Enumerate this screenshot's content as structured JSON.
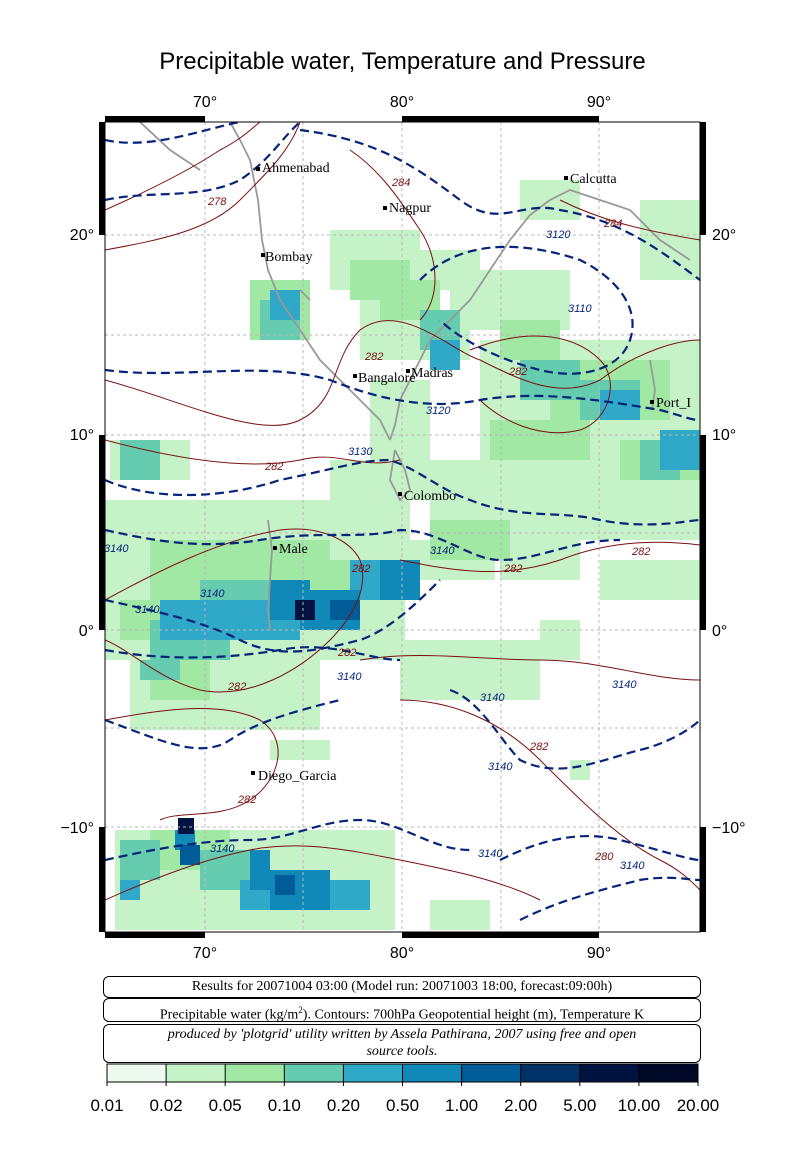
{
  "title": "Precipitable water, Temperature and Pressure",
  "axes": {
    "top_lon_labels": [
      "70°",
      "80°",
      "90°"
    ],
    "bottom_lon_labels": [
      "70°",
      "80°",
      "90°"
    ],
    "left_lat_labels": [
      "20°",
      "10°",
      "0°",
      "−10°"
    ],
    "right_lat_labels": [
      "20°",
      "10°",
      "0°",
      "−10°"
    ]
  },
  "cities": [
    {
      "name": "Ahmenabad"
    },
    {
      "name": "Nagpur"
    },
    {
      "name": "Calcutta"
    },
    {
      "name": "Bombay"
    },
    {
      "name": "Bangalore"
    },
    {
      "name": "Madras"
    },
    {
      "name": "Port_I"
    },
    {
      "name": "Colombo"
    },
    {
      "name": "Male"
    },
    {
      "name": "Diego_Garcia"
    }
  ],
  "contour_labels": {
    "geopotential": [
      "3120",
      "3110",
      "3120",
      "3130",
      "3140",
      "3140",
      "3140",
      "3140",
      "3140",
      "3140",
      "3140",
      "3140",
      "3140",
      "3140",
      "3140"
    ],
    "temperature": [
      "278",
      "284",
      "284",
      "282",
      "282",
      "282",
      "282",
      "282",
      "282",
      "282",
      "282",
      "282",
      "282",
      "280"
    ]
  },
  "info": {
    "results_line": "Results for 20071004 03:00 (Model run: 20071003 18:00, forecast:09:00h)",
    "legend_line_a": "Precipitable water (kg/m",
    "legend_sup": "2",
    "legend_line_b": ").  Contours: 700hPa Geopotential height (m), Temperature K",
    "credit_line1": "produced by 'plotgrid' utility written by Assela Pathirana, 2007 using free and open",
    "credit_line2": "source tools."
  },
  "colorbar": {
    "labels": [
      "0.01",
      "0.02",
      "0.05",
      "0.10",
      "0.20",
      "0.50",
      "1.00",
      "2.00",
      "5.00",
      "10.00",
      "20.00"
    ],
    "colors": [
      "#eefaf0",
      "#c6f2c8",
      "#a0e8a4",
      "#66ccb0",
      "#30a8c8",
      "#1088b8",
      "#005c98",
      "#003268",
      "#001240",
      "#000828"
    ]
  }
}
